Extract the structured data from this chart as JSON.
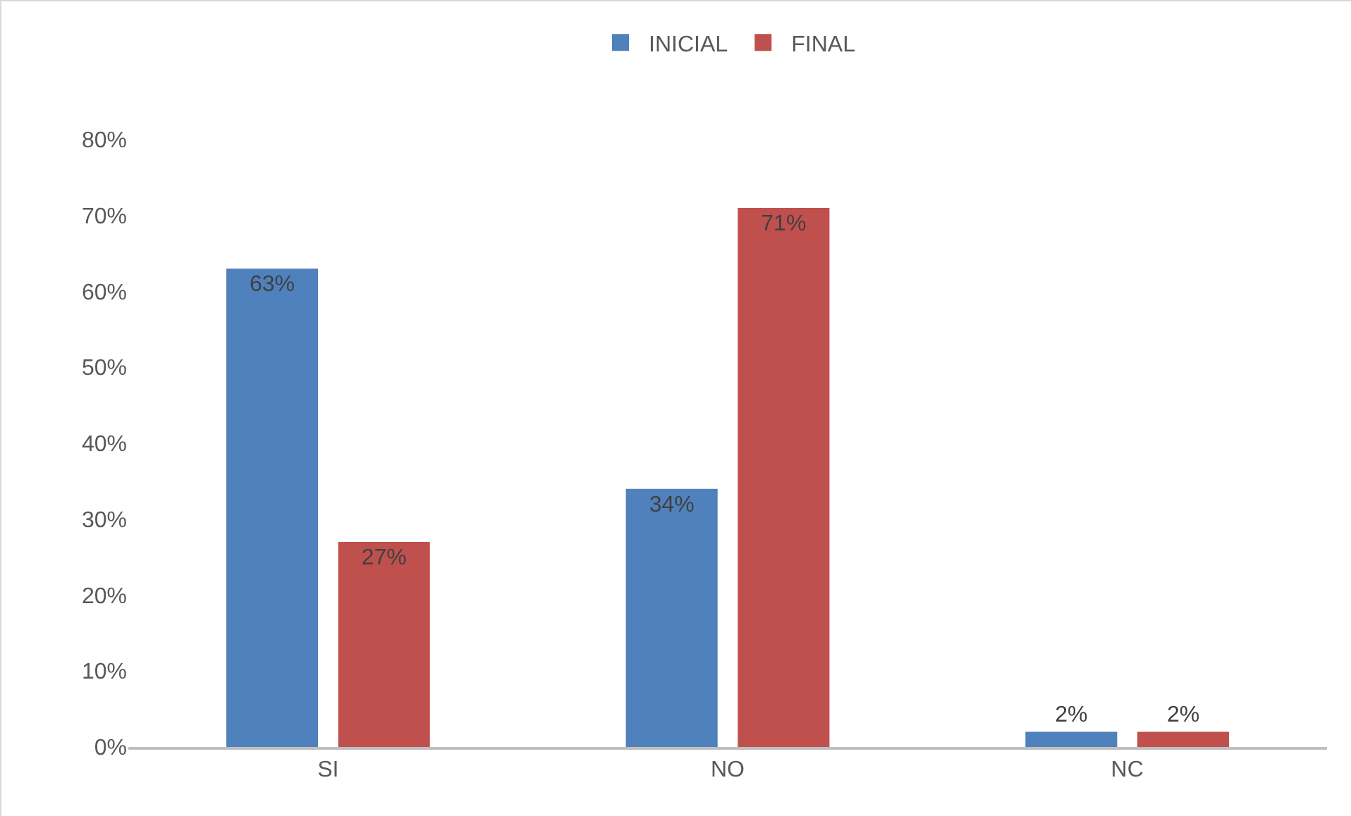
{
  "chart_data": {
    "type": "bar",
    "categories": [
      "SI",
      "NO",
      "NC"
    ],
    "series": [
      {
        "name": "INICIAL",
        "color": "#4f81bd",
        "values": [
          63,
          34,
          2
        ],
        "value_labels": [
          "63%",
          "34%",
          "2%"
        ]
      },
      {
        "name": "FINAL",
        "color": "#c0504d",
        "values": [
          27,
          71,
          2
        ],
        "value_labels": [
          "27%",
          "71%",
          "2%"
        ]
      }
    ],
    "ylim": [
      0,
      80
    ],
    "yticks": [
      {
        "value": 0,
        "label": "0%"
      },
      {
        "value": 10,
        "label": "10%"
      },
      {
        "value": 20,
        "label": "20%"
      },
      {
        "value": 30,
        "label": "30%"
      },
      {
        "value": 40,
        "label": "40%"
      },
      {
        "value": 50,
        "label": "50%"
      },
      {
        "value": 60,
        "label": "60%"
      },
      {
        "value": 70,
        "label": "70%"
      },
      {
        "value": 80,
        "label": "80%"
      }
    ],
    "grid": false,
    "legend": "top"
  }
}
